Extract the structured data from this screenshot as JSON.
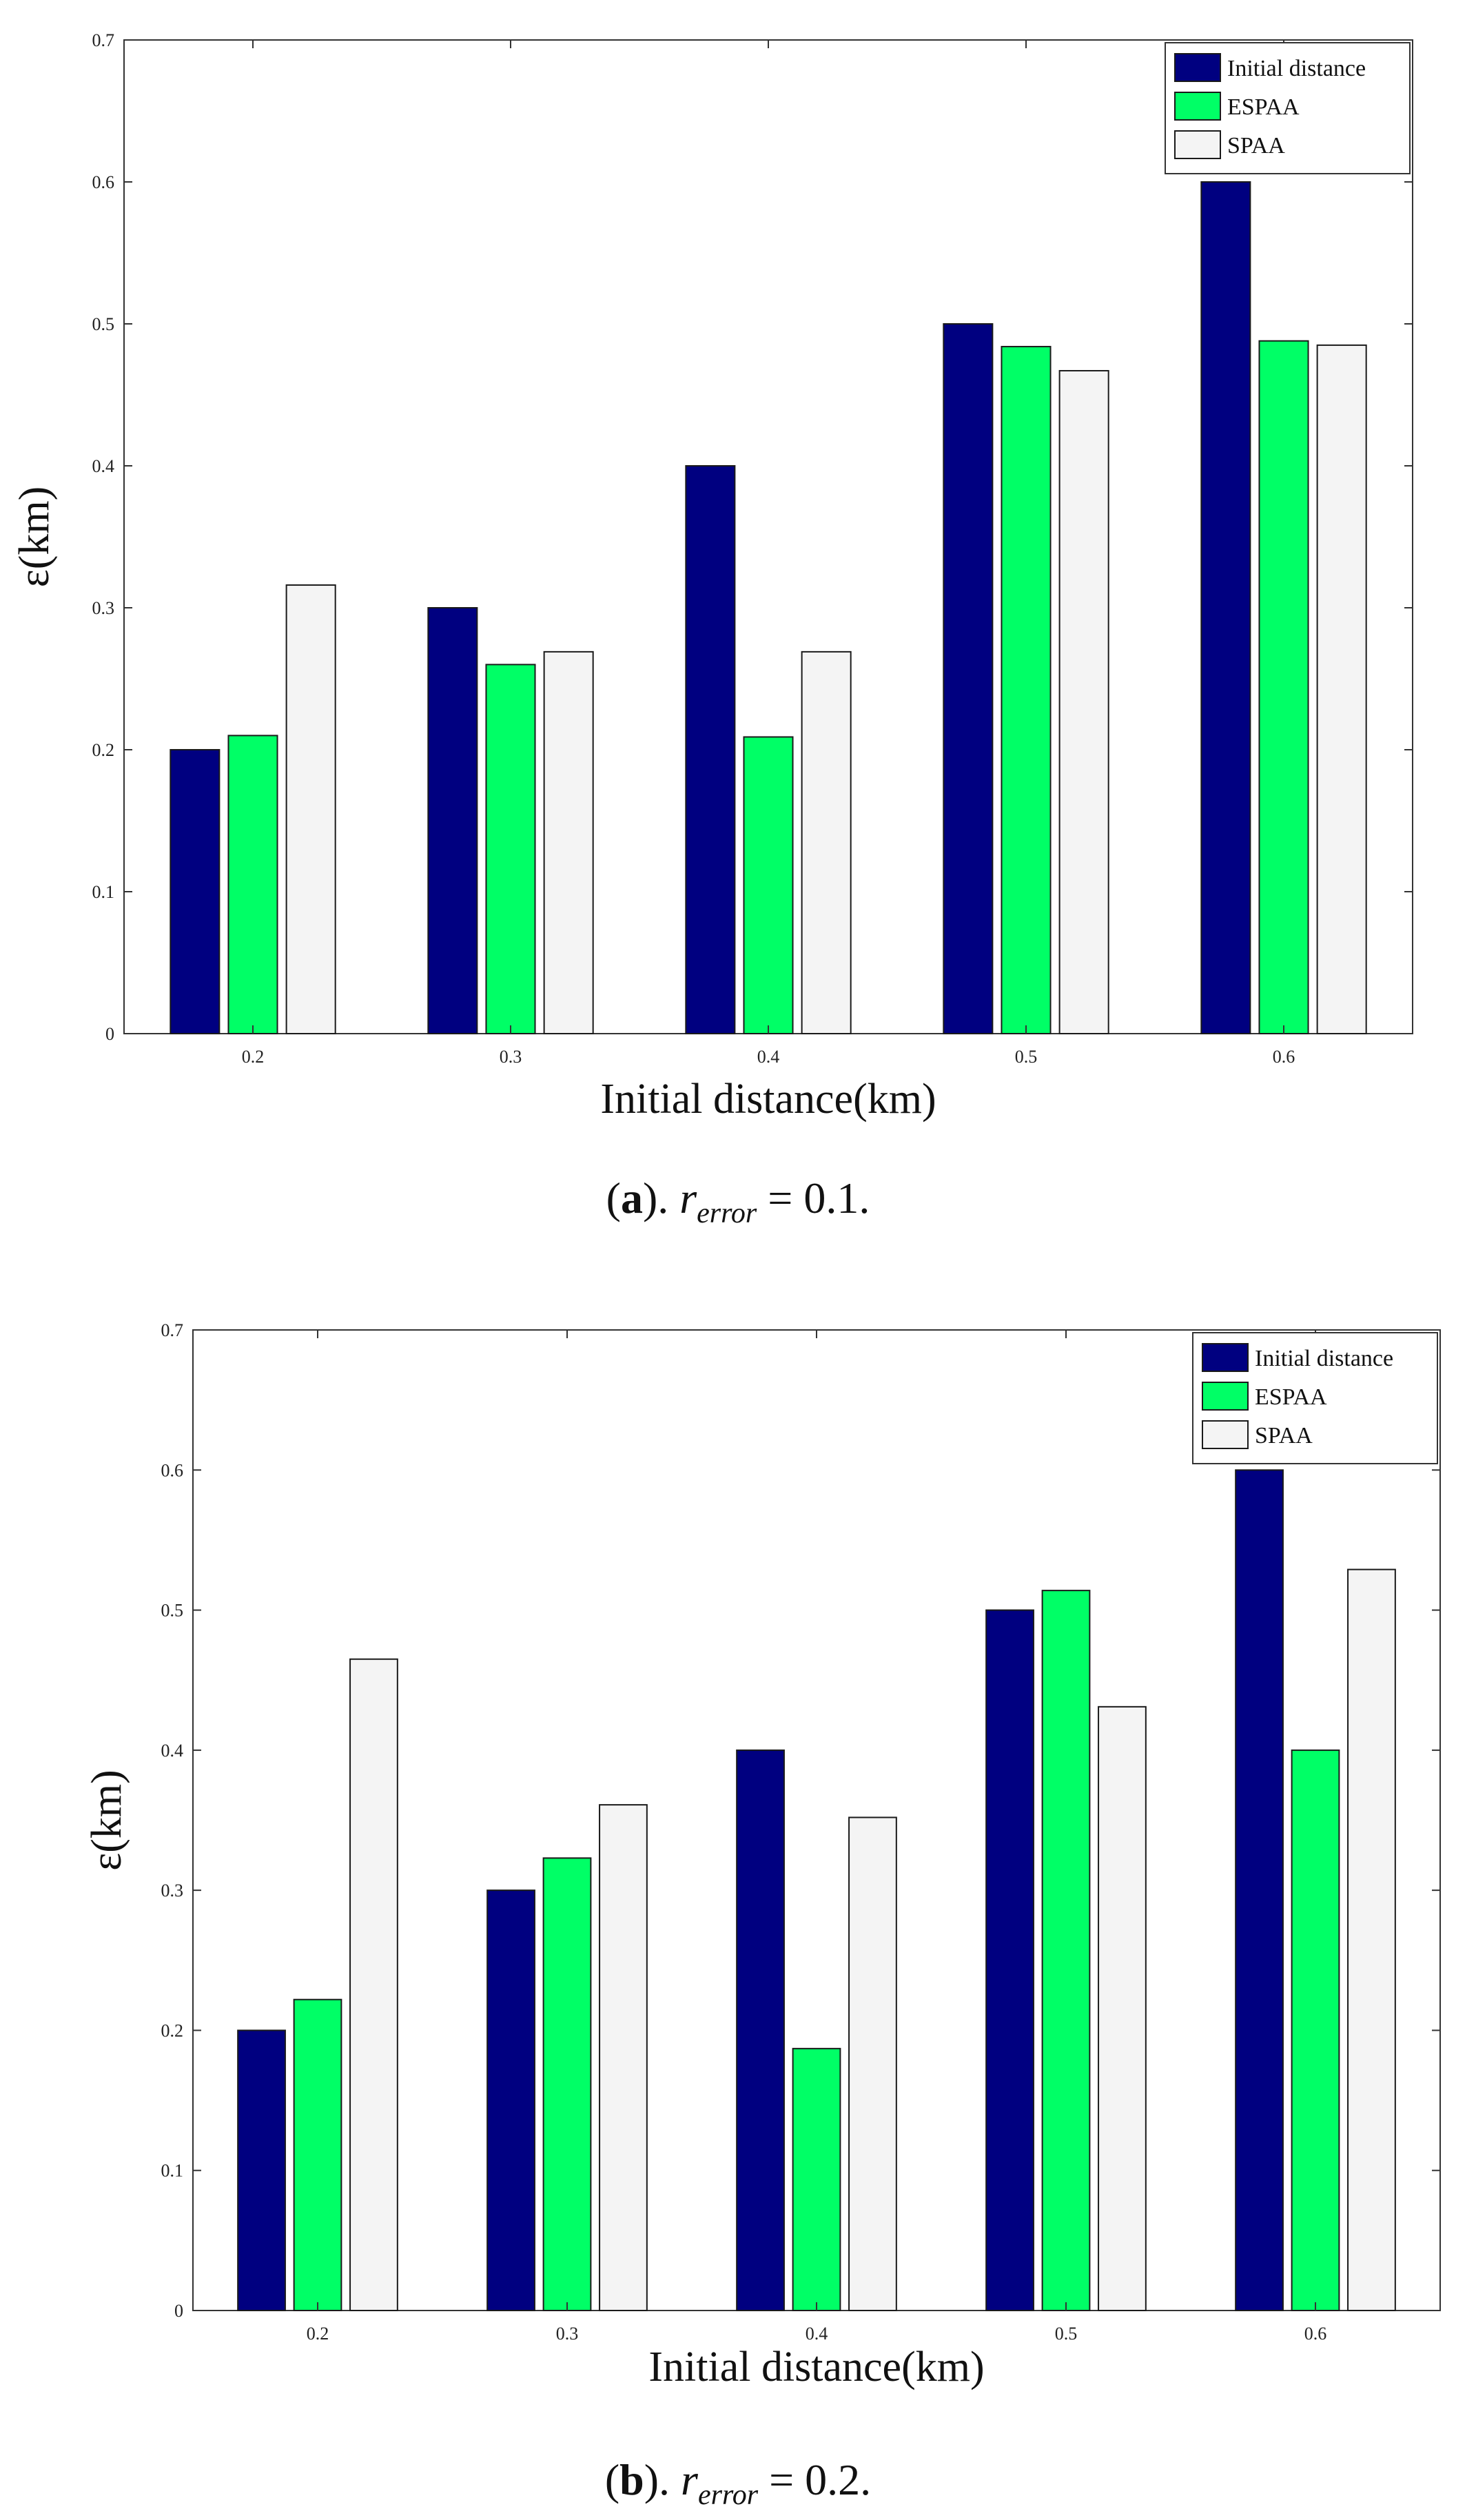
{
  "colors": {
    "initial": "#000080",
    "espaa": "#00ff66",
    "spaa": "#f4f4f4",
    "axis": "#333333"
  },
  "chart_data": [
    {
      "type": "bar",
      "caption": {
        "letter": "a",
        "var": "r",
        "sub": "error",
        "rest": " = 0.1."
      },
      "xlabel": "Initial distance(km)",
      "ylabel": "ε(km)",
      "ylim": [
        0,
        0.7
      ],
      "yticks": [
        0,
        0.1,
        0.2,
        0.3,
        0.4,
        0.5,
        0.6,
        0.7
      ],
      "ytick_labels": [
        "0",
        "0.1",
        "0.2",
        "0.3",
        "0.4",
        "0.5",
        "0.6",
        "0.7"
      ],
      "categories": [
        "0.2",
        "0.3",
        "0.4",
        "0.5",
        "0.6"
      ],
      "legend_position": "top-right",
      "series": [
        {
          "name": "Initial distance",
          "values": [
            0.2,
            0.3,
            0.4,
            0.5,
            0.6
          ]
        },
        {
          "name": "ESPAA",
          "values": [
            0.21,
            0.26,
            0.209,
            0.484,
            0.488
          ]
        },
        {
          "name": "SPAA",
          "values": [
            0.316,
            0.269,
            0.269,
            0.467,
            0.485
          ]
        }
      ]
    },
    {
      "type": "bar",
      "caption": {
        "letter": "b",
        "var": "r",
        "sub": "error",
        "rest": " = 0.2."
      },
      "xlabel": "Initial distance(km)",
      "ylabel": "ε(km)",
      "ylim": [
        0,
        0.7
      ],
      "yticks": [
        0,
        0.1,
        0.2,
        0.3,
        0.4,
        0.5,
        0.6,
        0.7
      ],
      "ytick_labels": [
        "0",
        "0.1",
        "0.2",
        "0.3",
        "0.4",
        "0.5",
        "0.6",
        "0.7"
      ],
      "categories": [
        "0.2",
        "0.3",
        "0.4",
        "0.5",
        "0.6"
      ],
      "legend_position": "top-right",
      "series": [
        {
          "name": "Initial distance",
          "values": [
            0.2,
            0.3,
            0.4,
            0.5,
            0.6
          ]
        },
        {
          "name": "ESPAA",
          "values": [
            0.222,
            0.323,
            0.187,
            0.514,
            0.4
          ]
        },
        {
          "name": "SPAA",
          "values": [
            0.465,
            0.361,
            0.352,
            0.431,
            0.529
          ]
        }
      ]
    }
  ]
}
